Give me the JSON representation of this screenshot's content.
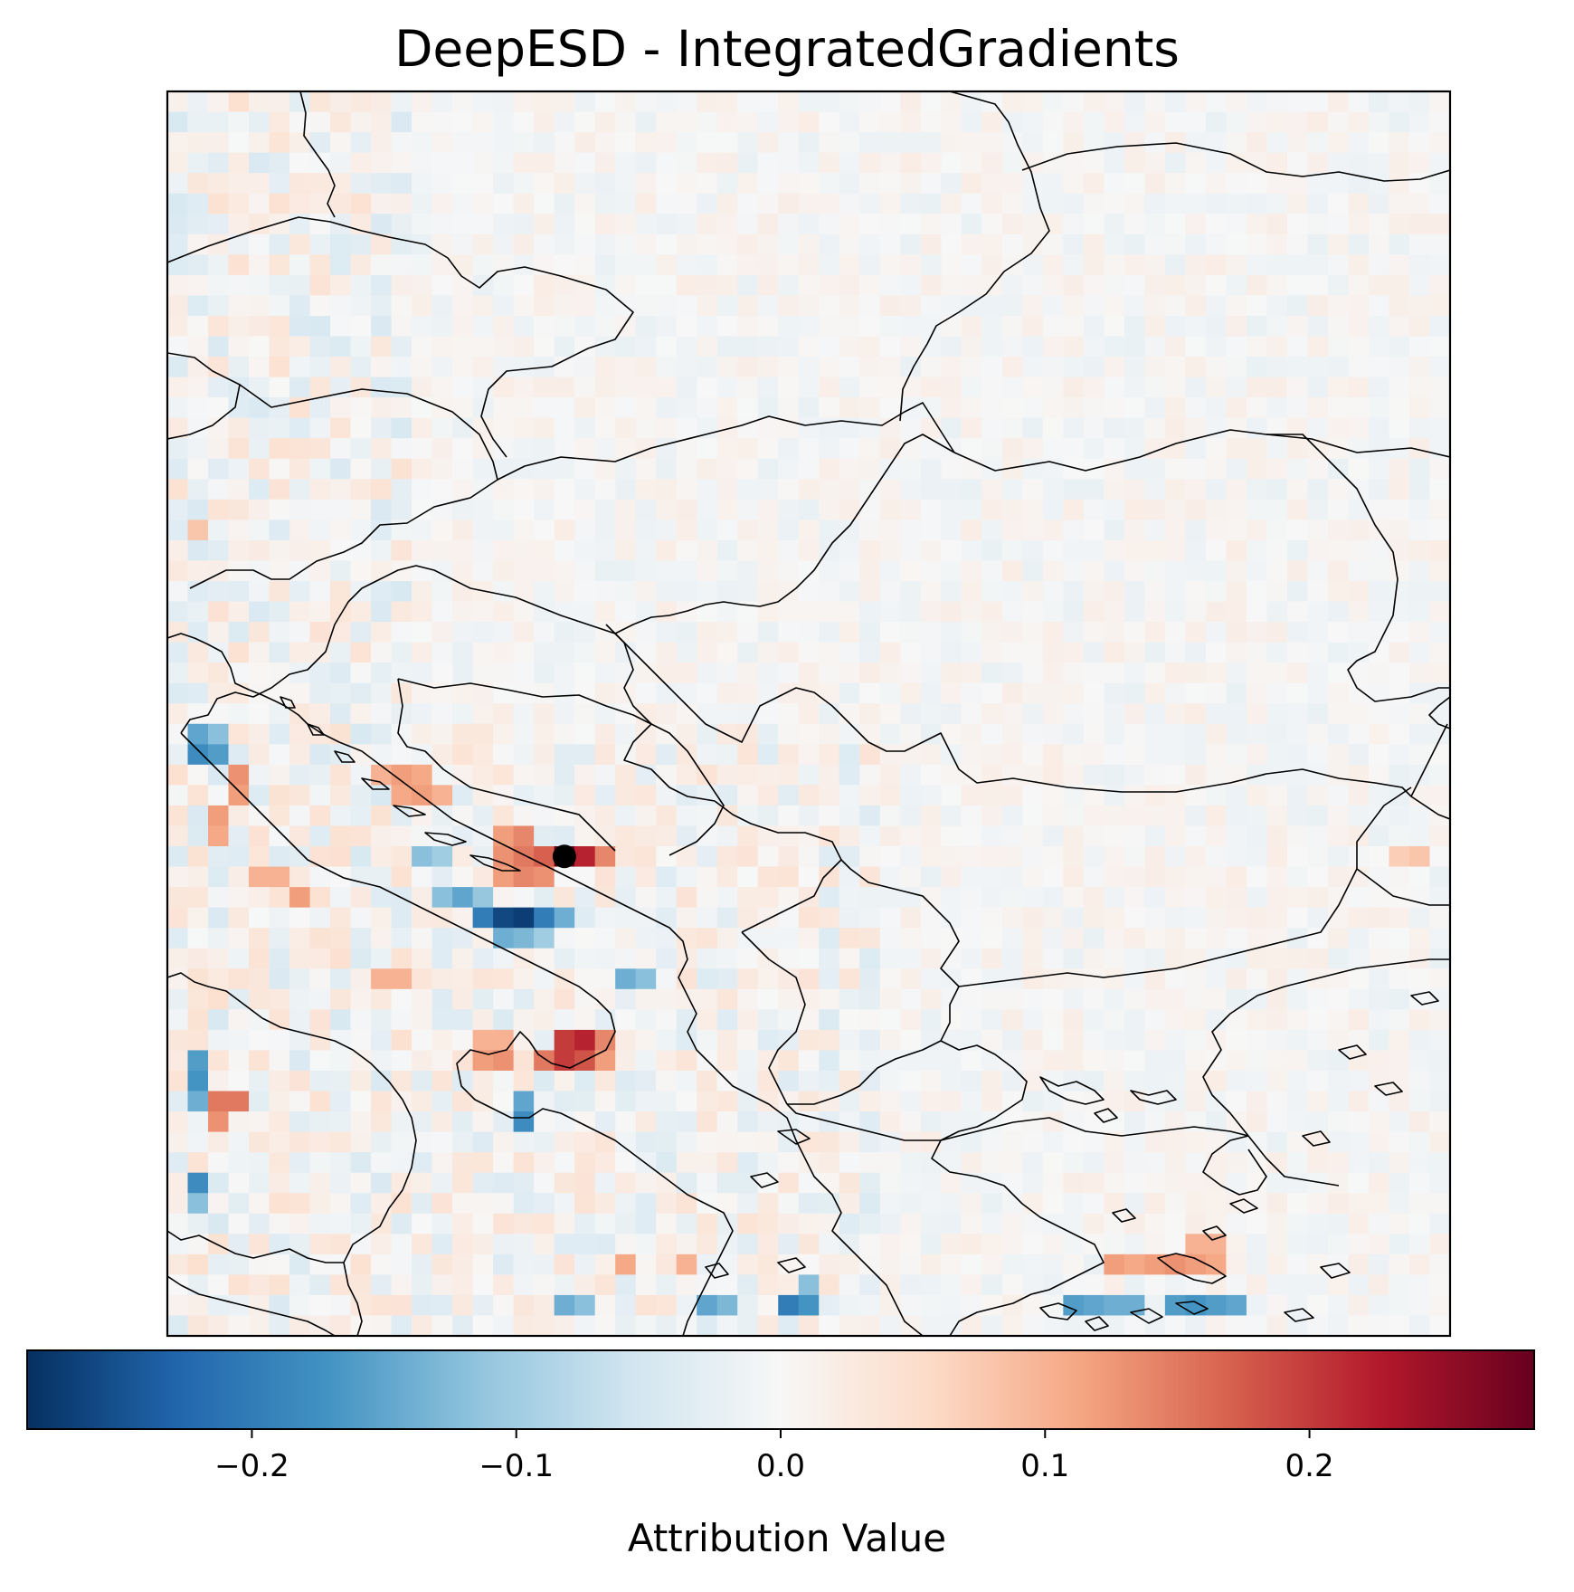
{
  "chart_data": {
    "type": "heatmap",
    "title": "DeepESD - IntegratedGradients",
    "colorbar": {
      "label": "Attribution Value",
      "colormap": "RdBu_r",
      "range": [
        -0.285,
        0.285
      ],
      "ticks": [
        -0.2,
        -0.1,
        0.0,
        0.1,
        0.2
      ],
      "tick_labels": [
        "−0.2",
        "−0.1",
        "0.0",
        "0.1",
        "0.2"
      ],
      "orientation": "horizontal",
      "position": "bottom"
    },
    "grid": {
      "rows": 61,
      "cols": 63,
      "background_value": 0.0
    },
    "hotspots": [
      {
        "row": 37,
        "col": 19,
        "value": 0.285
      },
      {
        "row": 37,
        "col": 20,
        "value": 0.22
      },
      {
        "row": 37,
        "col": 18,
        "value": 0.17
      },
      {
        "row": 37,
        "col": 21,
        "value": 0.14
      },
      {
        "row": 36,
        "col": 16,
        "value": 0.12
      },
      {
        "row": 36,
        "col": 17,
        "value": 0.14
      },
      {
        "row": 37,
        "col": 16,
        "value": 0.13
      },
      {
        "row": 37,
        "col": 17,
        "value": 0.15
      },
      {
        "row": 38,
        "col": 16,
        "value": 0.12
      },
      {
        "row": 38,
        "col": 17,
        "value": 0.14
      },
      {
        "row": 38,
        "col": 18,
        "value": 0.13
      },
      {
        "row": 33,
        "col": 10,
        "value": 0.1
      },
      {
        "row": 33,
        "col": 11,
        "value": 0.12
      },
      {
        "row": 33,
        "col": 12,
        "value": 0.11
      },
      {
        "row": 34,
        "col": 11,
        "value": 0.11
      },
      {
        "row": 34,
        "col": 12,
        "value": 0.12
      },
      {
        "row": 34,
        "col": 13,
        "value": 0.1
      },
      {
        "row": 40,
        "col": 16,
        "value": -0.26
      },
      {
        "row": 40,
        "col": 17,
        "value": -0.27
      },
      {
        "row": 40,
        "col": 15,
        "value": -0.2
      },
      {
        "row": 40,
        "col": 18,
        "value": -0.2
      },
      {
        "row": 40,
        "col": 19,
        "value": -0.14
      },
      {
        "row": 41,
        "col": 16,
        "value": -0.14
      },
      {
        "row": 41,
        "col": 17,
        "value": -0.13
      },
      {
        "row": 41,
        "col": 18,
        "value": -0.1
      },
      {
        "row": 39,
        "col": 13,
        "value": -0.12
      },
      {
        "row": 39,
        "col": 14,
        "value": -0.15
      },
      {
        "row": 39,
        "col": 15,
        "value": -0.11
      },
      {
        "row": 37,
        "col": 12,
        "value": -0.12
      },
      {
        "row": 37,
        "col": 13,
        "value": -0.1
      },
      {
        "row": 43,
        "col": 22,
        "value": -0.14
      },
      {
        "row": 43,
        "col": 23,
        "value": -0.12
      },
      {
        "row": 46,
        "col": 19,
        "value": 0.2
      },
      {
        "row": 46,
        "col": 20,
        "value": 0.22
      },
      {
        "row": 47,
        "col": 19,
        "value": 0.2
      },
      {
        "row": 47,
        "col": 20,
        "value": 0.18
      },
      {
        "row": 46,
        "col": 21,
        "value": 0.14
      },
      {
        "row": 47,
        "col": 21,
        "value": 0.12
      },
      {
        "row": 47,
        "col": 18,
        "value": 0.15
      },
      {
        "row": 46,
        "col": 15,
        "value": 0.1
      },
      {
        "row": 47,
        "col": 15,
        "value": 0.12
      },
      {
        "row": 47,
        "col": 16,
        "value": 0.13
      },
      {
        "row": 46,
        "col": 16,
        "value": 0.1
      },
      {
        "row": 49,
        "col": 17,
        "value": -0.15
      },
      {
        "row": 50,
        "col": 17,
        "value": -0.18
      },
      {
        "row": 31,
        "col": 1,
        "value": -0.15
      },
      {
        "row": 31,
        "col": 2,
        "value": -0.12
      },
      {
        "row": 32,
        "col": 1,
        "value": -0.18
      },
      {
        "row": 32,
        "col": 2,
        "value": -0.16
      },
      {
        "row": 33,
        "col": 3,
        "value": 0.13
      },
      {
        "row": 34,
        "col": 3,
        "value": 0.12
      },
      {
        "row": 35,
        "col": 2,
        "value": 0.12
      },
      {
        "row": 36,
        "col": 2,
        "value": 0.11
      },
      {
        "row": 38,
        "col": 4,
        "value": 0.1
      },
      {
        "row": 38,
        "col": 5,
        "value": 0.1
      },
      {
        "row": 39,
        "col": 6,
        "value": 0.12
      },
      {
        "row": 49,
        "col": 2,
        "value": 0.15
      },
      {
        "row": 49,
        "col": 3,
        "value": 0.15
      },
      {
        "row": 50,
        "col": 2,
        "value": 0.13
      },
      {
        "row": 47,
        "col": 1,
        "value": -0.16
      },
      {
        "row": 48,
        "col": 1,
        "value": -0.17
      },
      {
        "row": 49,
        "col": 1,
        "value": -0.14
      },
      {
        "row": 53,
        "col": 1,
        "value": -0.18
      },
      {
        "row": 54,
        "col": 1,
        "value": -0.12
      },
      {
        "row": 59,
        "col": 30,
        "value": -0.2
      },
      {
        "row": 59,
        "col": 31,
        "value": -0.17
      },
      {
        "row": 58,
        "col": 31,
        "value": -0.12
      },
      {
        "row": 59,
        "col": 26,
        "value": -0.15
      },
      {
        "row": 59,
        "col": 27,
        "value": -0.13
      },
      {
        "row": 59,
        "col": 19,
        "value": -0.14
      },
      {
        "row": 59,
        "col": 20,
        "value": -0.12
      },
      {
        "row": 59,
        "col": 44,
        "value": -0.16
      },
      {
        "row": 59,
        "col": 45,
        "value": -0.15
      },
      {
        "row": 59,
        "col": 46,
        "value": -0.14
      },
      {
        "row": 59,
        "col": 47,
        "value": -0.14
      },
      {
        "row": 59,
        "col": 49,
        "value": -0.16
      },
      {
        "row": 59,
        "col": 50,
        "value": -0.17
      },
      {
        "row": 59,
        "col": 51,
        "value": -0.16
      },
      {
        "row": 59,
        "col": 52,
        "value": -0.15
      },
      {
        "row": 57,
        "col": 46,
        "value": 0.12
      },
      {
        "row": 57,
        "col": 47,
        "value": 0.11
      },
      {
        "row": 57,
        "col": 48,
        "value": 0.12
      },
      {
        "row": 57,
        "col": 49,
        "value": 0.13
      },
      {
        "row": 57,
        "col": 50,
        "value": 0.12
      },
      {
        "row": 57,
        "col": 51,
        "value": 0.11
      },
      {
        "row": 56,
        "col": 50,
        "value": 0.1
      },
      {
        "row": 56,
        "col": 51,
        "value": 0.1
      },
      {
        "row": 57,
        "col": 22,
        "value": 0.11
      },
      {
        "row": 57,
        "col": 25,
        "value": 0.1
      },
      {
        "row": 43,
        "col": 10,
        "value": 0.1
      },
      {
        "row": 43,
        "col": 11,
        "value": 0.1
      },
      {
        "row": 37,
        "col": 60,
        "value": 0.07
      },
      {
        "row": 37,
        "col": 61,
        "value": 0.08
      },
      {
        "row": 21,
        "col": 1,
        "value": 0.08
      }
    ],
    "marker": {
      "row": 37,
      "col": 19,
      "color": "#000000"
    }
  }
}
